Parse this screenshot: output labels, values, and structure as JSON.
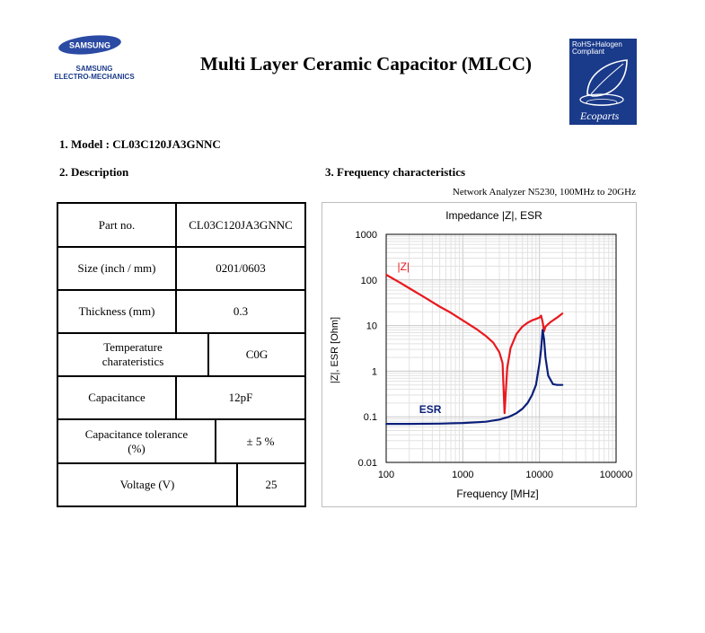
{
  "header": {
    "logo_text": "SAMSUNG",
    "company_line1": "SAMSUNG",
    "company_line2": "ELECTRO-MECHANICS",
    "title": "Multi Layer Ceramic Capacitor (MLCC)",
    "eco_badge": {
      "line1": "RoHS+Halogen",
      "line2": "Compliant",
      "brand": "Ecoparts",
      "color": "#1a3a8a"
    }
  },
  "sections": {
    "model": "1. Model : CL03C120JA3GNNC",
    "description": "2. Description",
    "frequency": "3. Frequency characteristics",
    "analyzer_note": "Network Analyzer N5230, 100MHz to 20GHz"
  },
  "spec_table": [
    {
      "label": "Part no.",
      "value": "CL03C120JA3GNNC"
    },
    {
      "label": "Size (inch / mm)",
      "value": "0201/0603"
    },
    {
      "label": "Thickness (mm)",
      "value": "0.3"
    },
    {
      "label": "Temperature charateristics",
      "value": "C0G"
    },
    {
      "label": "Capacitance",
      "value": "12pF"
    },
    {
      "label": "Capacitance tolerance (%)",
      "value": "± 5 %"
    },
    {
      "label": "Voltage (V)",
      "value": "25"
    }
  ],
  "chart_data": {
    "type": "line",
    "title": "Impedance |Z|,  ESR",
    "xlabel": "Frequency [MHz]",
    "ylabel": "|Z|, ESR [Ohm]",
    "x_scale": "log",
    "y_scale": "log",
    "xlim": [
      100,
      100000
    ],
    "ylim": [
      0.01,
      1000
    ],
    "x_ticks": [
      "100",
      "1000",
      "10000",
      "100000"
    ],
    "y_ticks": [
      "0.01",
      "0.1",
      "1",
      "10",
      "100",
      "1000"
    ],
    "grid": true,
    "series": [
      {
        "name": "|Z|",
        "color": "#e8191e",
        "x": [
          100,
          150,
          200,
          300,
          500,
          700,
          1000,
          1500,
          2000,
          2500,
          3000,
          3300,
          3500,
          3800,
          4200,
          5000,
          6000,
          7000,
          8000,
          9000,
          10000,
          10500,
          11000,
          11500,
          12000,
          14000,
          17000,
          20000
        ],
        "y": [
          130,
          88,
          66,
          44,
          26,
          19,
          13,
          8.4,
          5.9,
          4.2,
          2.6,
          1.5,
          0.12,
          1.2,
          3.2,
          6.5,
          9.5,
          11.5,
          13,
          14,
          15,
          16.5,
          12,
          7.5,
          9.5,
          12,
          15,
          18.5
        ]
      },
      {
        "name": "ESR",
        "color": "#0b1f7a",
        "x": [
          100,
          200,
          500,
          1000,
          2000,
          3000,
          4000,
          5000,
          6000,
          7000,
          8000,
          9000,
          10000,
          10500,
          11000,
          11500,
          12000,
          13000,
          15000,
          17000,
          20000
        ],
        "y": [
          0.07,
          0.07,
          0.071,
          0.073,
          0.078,
          0.087,
          0.1,
          0.12,
          0.15,
          0.2,
          0.3,
          0.5,
          1.5,
          3,
          8,
          5,
          2,
          0.8,
          0.52,
          0.5,
          0.5
        ]
      }
    ]
  }
}
